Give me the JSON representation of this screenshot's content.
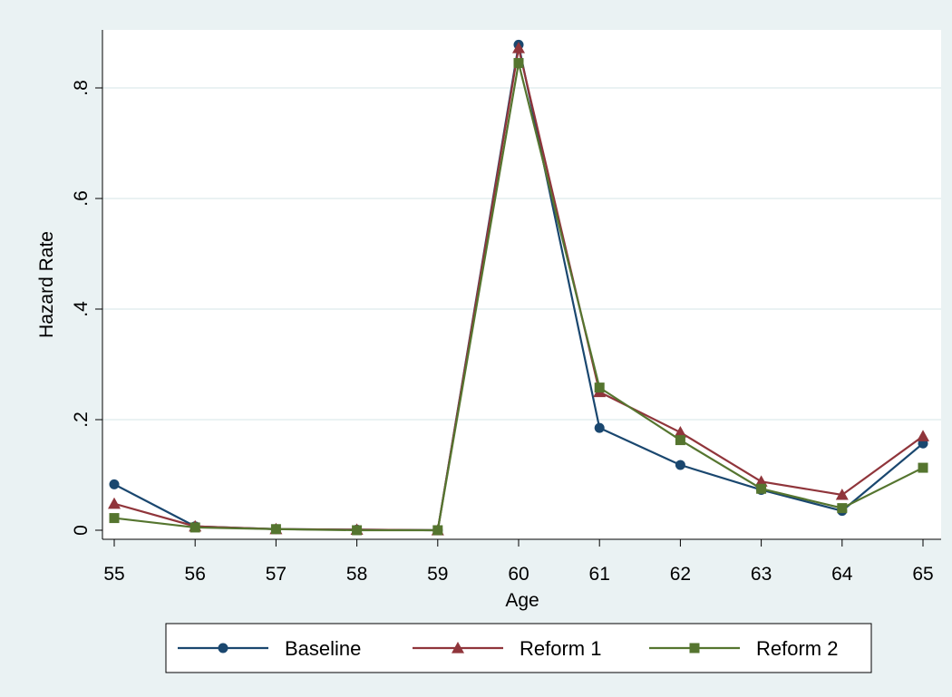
{
  "chart_data": {
    "type": "line",
    "title": "",
    "xlabel": "Age",
    "ylabel": "Hazard Rate",
    "x": [
      55,
      56,
      57,
      58,
      59,
      60,
      61,
      62,
      63,
      64,
      65
    ],
    "xlim": [
      55,
      65
    ],
    "ylim": [
      -0.02,
      0.9
    ],
    "x_ticks": [
      55,
      56,
      57,
      58,
      59,
      60,
      61,
      62,
      63,
      64,
      65
    ],
    "y_ticks": [
      0,
      0.2,
      0.4,
      0.6,
      0.8
    ],
    "y_tick_labels": [
      "0",
      ".2",
      ".4",
      ".6",
      ".8"
    ],
    "grid": true,
    "legend_position": "bottom",
    "series": [
      {
        "name": "Baseline",
        "color": "#1a476f",
        "marker": "circle",
        "values": [
          0.083,
          0.007,
          0.002,
          0.001,
          0.0,
          0.878,
          0.185,
          0.118,
          0.073,
          0.035,
          0.157
        ]
      },
      {
        "name": "Reform 1",
        "color": "#90353b",
        "marker": "triangle",
        "values": [
          0.048,
          0.007,
          0.002,
          0.001,
          0.0,
          0.872,
          0.25,
          0.177,
          0.088,
          0.064,
          0.17
        ]
      },
      {
        "name": "Reform 2",
        "color": "#55752f",
        "marker": "square",
        "values": [
          0.022,
          0.005,
          0.002,
          0.0,
          0.0,
          0.845,
          0.258,
          0.163,
          0.075,
          0.04,
          0.113
        ]
      }
    ]
  }
}
